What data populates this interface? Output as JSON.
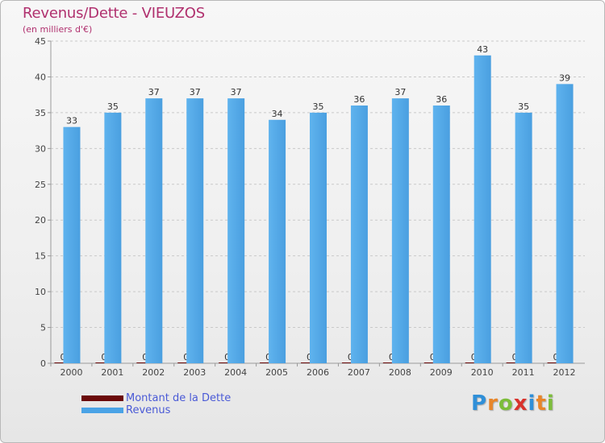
{
  "chart_data": {
    "type": "bar",
    "title": "Revenus/Dette - VIEUZOS",
    "subtitle": "(en milliers d'€)",
    "categories": [
      "2000",
      "2001",
      "2002",
      "2003",
      "2004",
      "2005",
      "2006",
      "2007",
      "2008",
      "2009",
      "2010",
      "2011",
      "2012"
    ],
    "series": [
      {
        "name": "Montant de la Dette",
        "color": "#6b0a0a",
        "values": [
          0,
          0,
          0,
          0,
          0,
          0,
          0,
          0,
          0,
          0,
          0,
          0,
          0
        ]
      },
      {
        "name": "Revenus",
        "color": "#4aa3e6",
        "values": [
          33,
          35,
          37,
          37,
          37,
          34,
          35,
          36,
          37,
          36,
          43,
          35,
          39
        ]
      }
    ],
    "ylim": [
      0,
      45
    ],
    "yticks": [
      0,
      5,
      10,
      15,
      20,
      25,
      30,
      35,
      40,
      45
    ],
    "grid": true,
    "legend_position": "bottom-left"
  },
  "logo": {
    "letters": [
      {
        "ch": "P",
        "color": "#2f8fd8"
      },
      {
        "ch": "r",
        "color": "#e8862a"
      },
      {
        "ch": "o",
        "color": "#7cbd3a"
      },
      {
        "ch": "x",
        "color": "#d9322c"
      },
      {
        "ch": "i",
        "color": "#2f8fd8"
      },
      {
        "ch": "t",
        "color": "#e8862a"
      },
      {
        "ch": "i",
        "color": "#7cbd3a"
      }
    ]
  }
}
